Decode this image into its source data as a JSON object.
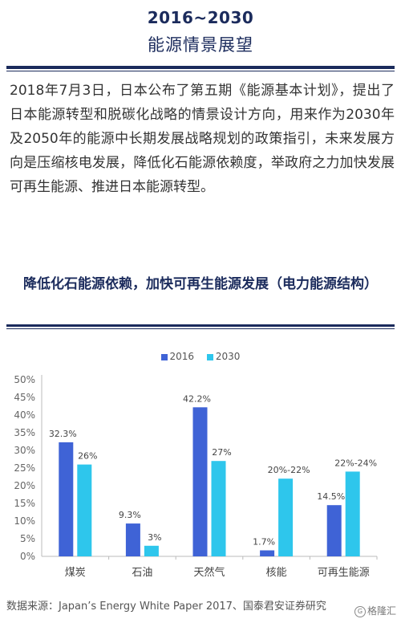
{
  "header": {
    "title": "2016~2030",
    "subtitle": "能源情景展望"
  },
  "paragraph": "2018年7月3日，日本公布了第五期《能源基本计划》，提出了日本能源转型和脱碳化战略的情景设计方向，用来作为2030年及2050年的能源中长期发展战略规划的政策指引，未来发展方向是压缩核电发展，降低化石能源依赖度，举政府之力加快发展可再生能源、推进日本能源转型。",
  "section_title": "降低化石能源依赖，加快可再生能源发展（电力能源结构）",
  "source": "数据来源：Japan’s Energy White Paper 2017、国泰君安证券研究",
  "watermark": "格隆汇",
  "colors": {
    "navy": "#1b2b5c",
    "series_2016": "#3f63d6",
    "series_2030": "#2ec6ec"
  },
  "chart_data": {
    "type": "bar",
    "categories": [
      "煤炭",
      "石油",
      "天然气",
      "核能",
      "可再生能源"
    ],
    "series": [
      {
        "name": "2016",
        "values": [
          32.3,
          9.3,
          42.2,
          1.7,
          14.5
        ],
        "labels": [
          "32.3%",
          "9.3%",
          "42.2%",
          "1.7%",
          "14.5%"
        ]
      },
      {
        "name": "2030",
        "values": [
          26,
          3,
          27,
          22,
          24
        ],
        "labels": [
          "26%",
          "3%",
          "27%",
          "20%-22%",
          "22%-24%"
        ]
      }
    ],
    "ylim": [
      0,
      50
    ],
    "yticks": [
      "0%",
      "5%",
      "10%",
      "15%",
      "20%",
      "25%",
      "30%",
      "35%",
      "40%",
      "45%",
      "50%"
    ],
    "legend_position": "top-center",
    "grid": false
  }
}
